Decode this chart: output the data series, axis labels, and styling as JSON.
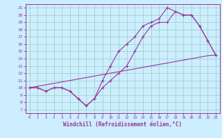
{
  "line1_x": [
    0,
    1,
    2,
    3,
    4,
    5,
    6,
    7,
    8,
    9,
    10,
    11,
    12,
    13,
    14,
    15,
    16,
    17,
    18,
    19,
    20,
    21,
    22,
    23
  ],
  "line1_y": [
    10.0,
    10.2,
    10.4,
    10.6,
    10.8,
    11.0,
    11.2,
    11.4,
    11.6,
    11.8,
    12.0,
    12.2,
    12.4,
    12.6,
    12.8,
    13.0,
    13.2,
    13.4,
    13.6,
    13.8,
    14.0,
    14.2,
    14.4,
    14.5
  ],
  "line2_x": [
    0,
    1,
    2,
    3,
    4,
    5,
    6,
    7,
    8,
    9,
    10,
    11,
    12,
    13,
    14,
    15,
    16,
    17,
    18,
    19,
    20,
    21,
    22,
    23
  ],
  "line2_y": [
    10.0,
    10.0,
    9.5,
    10.0,
    10.0,
    9.5,
    8.5,
    7.5,
    8.5,
    10.0,
    11.0,
    12.0,
    13.0,
    15.0,
    17.0,
    18.5,
    19.0,
    19.0,
    20.5,
    20.0,
    20.0,
    18.5,
    16.5,
    14.5
  ],
  "line3_x": [
    0,
    1,
    2,
    3,
    4,
    5,
    6,
    7,
    8,
    9,
    10,
    11,
    12,
    13,
    14,
    15,
    16,
    17,
    18,
    19,
    20,
    21,
    22,
    23
  ],
  "line3_y": [
    10.0,
    10.0,
    9.5,
    10.0,
    10.0,
    9.5,
    8.5,
    7.5,
    8.5,
    11.0,
    13.0,
    15.0,
    16.0,
    17.0,
    18.5,
    19.0,
    19.5,
    21.0,
    20.5,
    20.0,
    20.0,
    18.5,
    16.5,
    14.5
  ],
  "color": "#993399",
  "bg_color": "#cceeff",
  "grid_color": "#99ccbb",
  "xlabel": "Windchill (Refroidissement éolien,°C)",
  "xlim": [
    -0.5,
    23.5
  ],
  "ylim": [
    6.5,
    21.5
  ],
  "xticks": [
    0,
    1,
    2,
    3,
    4,
    5,
    6,
    7,
    8,
    9,
    10,
    11,
    12,
    13,
    14,
    15,
    16,
    17,
    18,
    19,
    20,
    21,
    22,
    23
  ],
  "yticks": [
    7,
    8,
    9,
    10,
    11,
    12,
    13,
    14,
    15,
    16,
    17,
    18,
    19,
    20,
    21
  ]
}
